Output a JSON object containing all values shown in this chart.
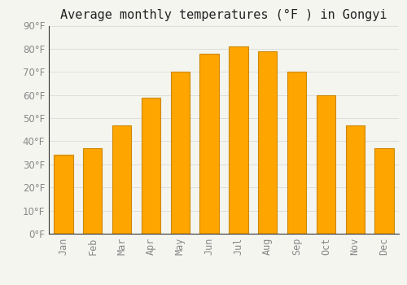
{
  "title": "Average monthly temperatures (°F ) in Gongyi",
  "months": [
    "Jan",
    "Feb",
    "Mar",
    "Apr",
    "May",
    "Jun",
    "Jul",
    "Aug",
    "Sep",
    "Oct",
    "Nov",
    "Dec"
  ],
  "values": [
    34,
    37,
    47,
    59,
    70,
    78,
    81,
    79,
    70,
    60,
    47,
    37
  ],
  "bar_color": "#FFA500",
  "bar_edge_color": "#cc8800",
  "background_color": "#f5f5f0",
  "grid_color": "#dddddd",
  "ylim": [
    0,
    90
  ],
  "yticks": [
    0,
    10,
    20,
    30,
    40,
    50,
    60,
    70,
    80,
    90
  ],
  "title_fontsize": 11,
  "tick_fontsize": 8.5,
  "tick_color": "#888888",
  "spine_color": "#333333"
}
